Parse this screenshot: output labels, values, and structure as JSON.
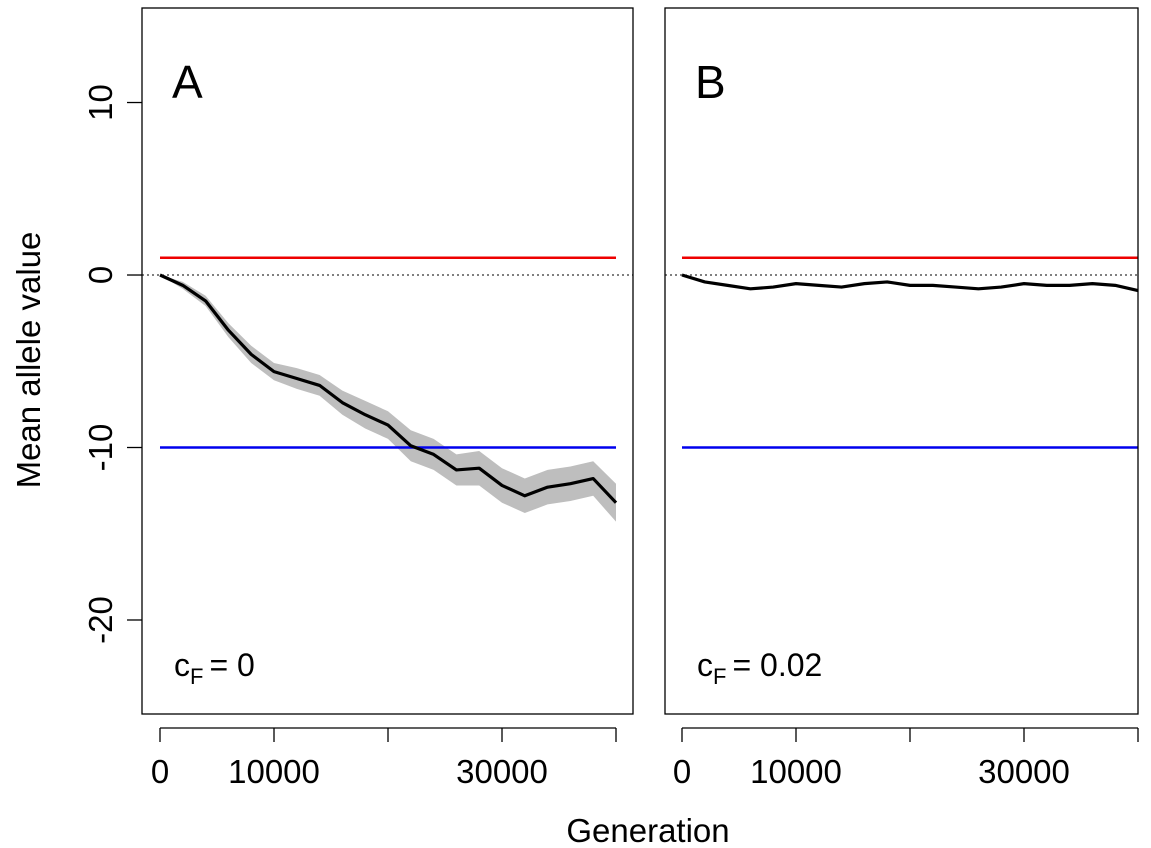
{
  "xlabel": "Generation",
  "ylabel": "Mean allele value",
  "chart_data": [
    {
      "type": "line",
      "panel_label": "A",
      "annotation": {
        "symbol": "c",
        "subscript": "F",
        "text": "= 0"
      },
      "x": [
        0,
        2000,
        4000,
        6000,
        8000,
        10000,
        12000,
        14000,
        16000,
        18000,
        20000,
        22000,
        24000,
        26000,
        28000,
        30000,
        32000,
        34000,
        36000,
        38000,
        40000
      ],
      "series": [
        {
          "color": "#000000",
          "band_color": "#bebebe",
          "values": [
            0,
            -0.6,
            -1.5,
            -3.2,
            -4.6,
            -5.6,
            -6.0,
            -6.4,
            -7.4,
            -8.1,
            -8.7,
            -9.9,
            -10.4,
            -11.3,
            -11.2,
            -12.2,
            -12.8,
            -12.3,
            -12.1,
            -11.8,
            -13.2
          ],
          "band_lower": [
            0,
            -0.8,
            -1.8,
            -3.6,
            -5.1,
            -6.1,
            -6.6,
            -7.0,
            -8.1,
            -8.9,
            -9.5,
            -10.8,
            -11.3,
            -12.2,
            -12.2,
            -13.2,
            -13.8,
            -13.3,
            -13.1,
            -12.8,
            -14.3
          ],
          "band_upper": [
            0,
            -0.4,
            -1.2,
            -2.8,
            -4.1,
            -5.1,
            -5.4,
            -5.8,
            -6.7,
            -7.3,
            -7.9,
            -9.0,
            -9.5,
            -10.4,
            -10.2,
            -11.2,
            -11.8,
            -11.3,
            -11.1,
            -10.8,
            -12.1
          ]
        }
      ],
      "hlines": [
        {
          "value": 1,
          "color": "#ee0000",
          "xrange": [
            0,
            40000
          ]
        },
        {
          "value": -10,
          "color": "#0000ee",
          "xrange": [
            0,
            40000
          ]
        },
        {
          "value": 0,
          "color": "#000000",
          "dotted": true
        }
      ],
      "xlim": [
        -1579,
        41491
      ],
      "ylim": [
        -25.45,
        15.48
      ],
      "xticks": [
        0,
        10000,
        {
          "value": 20000,
          "label": null
        },
        30000,
        {
          "value": 40000,
          "label": null
        }
      ],
      "yticks": [
        -20,
        -10,
        0,
        10
      ]
    },
    {
      "type": "line",
      "panel_label": "B",
      "annotation": {
        "symbol": "c",
        "subscript": "F",
        "text": "= 0.02"
      },
      "x": [
        0,
        2000,
        4000,
        6000,
        8000,
        10000,
        12000,
        14000,
        16000,
        18000,
        20000,
        22000,
        24000,
        26000,
        28000,
        30000,
        32000,
        34000,
        36000,
        38000,
        40000
      ],
      "series": [
        {
          "color": "#000000",
          "values": [
            0,
            -0.4,
            -0.6,
            -0.8,
            -0.7,
            -0.5,
            -0.6,
            -0.7,
            -0.5,
            -0.4,
            -0.6,
            -0.6,
            -0.7,
            -0.8,
            -0.7,
            -0.5,
            -0.6,
            -0.6,
            -0.5,
            -0.6,
            -0.9
          ]
        }
      ],
      "hlines": [
        {
          "value": 1,
          "color": "#ee0000",
          "xrange": [
            0,
            40000
          ]
        },
        {
          "value": -10,
          "color": "#0000ee",
          "xrange": [
            0,
            40000
          ]
        },
        {
          "value": 0,
          "color": "#000000",
          "dotted": true
        }
      ],
      "xlim": [
        -1491,
        40000
      ],
      "ylim": [
        -25.45,
        15.48
      ],
      "xticks": [
        0,
        10000,
        {
          "value": 20000,
          "label": null
        },
        30000,
        {
          "value": 40000,
          "label": null
        }
      ]
    }
  ]
}
